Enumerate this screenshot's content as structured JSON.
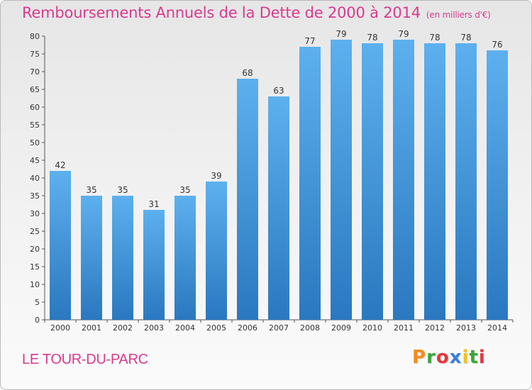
{
  "chart_data": {
    "type": "bar",
    "title": "Remboursements Annuels de la Dette de 2000 à 2014",
    "subtitle": "(en milliers d'€)",
    "categories": [
      "2000",
      "2001",
      "2002",
      "2003",
      "2004",
      "2005",
      "2006",
      "2007",
      "2008",
      "2009",
      "2010",
      "2011",
      "2012",
      "2013",
      "2014"
    ],
    "values": [
      42,
      35,
      35,
      31,
      35,
      39,
      68,
      63,
      77,
      79,
      78,
      79,
      78,
      78,
      76
    ],
    "xlabel": "",
    "ylabel": "",
    "ylim": [
      0,
      80
    ],
    "yticks": [
      0,
      5,
      10,
      15,
      20,
      25,
      30,
      35,
      40,
      45,
      50,
      55,
      60,
      65,
      70,
      75,
      80
    ],
    "grid": false,
    "legend": "none",
    "bar_color": "#3a8fd8"
  },
  "footer": {
    "place": "LE TOUR-DU-PARC",
    "brand": "Proxiti"
  },
  "colors": {
    "accent": "#d83a8e",
    "bar_light": "#5db0ee",
    "bar_dark": "#2a78c0",
    "brand_letters": [
      "#f28c1e",
      "#3aa63a",
      "#e0393e",
      "#3a7fd8",
      "#f2c21e",
      "#3aa63a",
      "#e0393e"
    ]
  }
}
